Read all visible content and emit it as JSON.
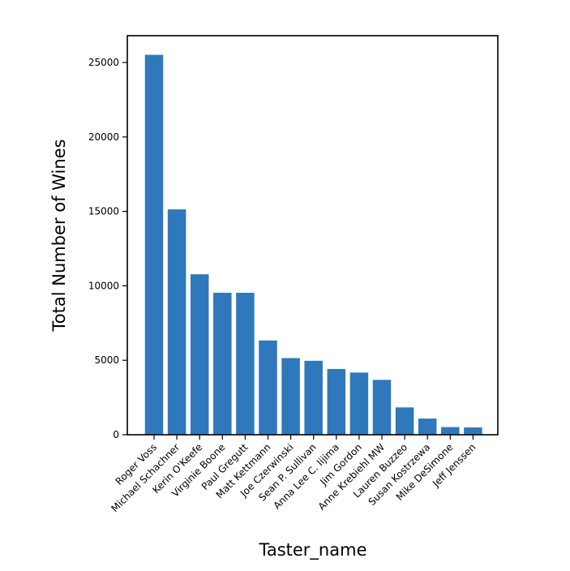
{
  "chart_data": {
    "type": "bar",
    "title": "",
    "xlabel": "Taster_name",
    "ylabel": "Total Number of Wines",
    "ylim": [
      0,
      26800
    ],
    "yticks": [
      0,
      5000,
      10000,
      15000,
      20000,
      25000
    ],
    "grid": false,
    "colors": {
      "bar": "#2f78bb",
      "axis": "#000000",
      "background": "#ffffff"
    },
    "categories": [
      "Roger Voss",
      "Michael Schachner",
      "Kerin O'Keefe",
      "Virginie Boone",
      "Paul Gregutt",
      "Matt Kettmann",
      "Joe Czerwinski",
      "Sean P. Sullivan",
      "Anna Lee C. Iijima",
      "Jim Gordon",
      "Anne Krebiehl MW",
      "Lauren Buzzeo",
      "Susan Kostrzewa",
      "Mike DeSimone",
      "Jeff Jenssen"
    ],
    "values": [
      25514,
      15134,
      10776,
      9537,
      9532,
      6332,
      5147,
      4966,
      4415,
      4177,
      3685,
      1835,
      1085,
      514,
      491
    ]
  }
}
